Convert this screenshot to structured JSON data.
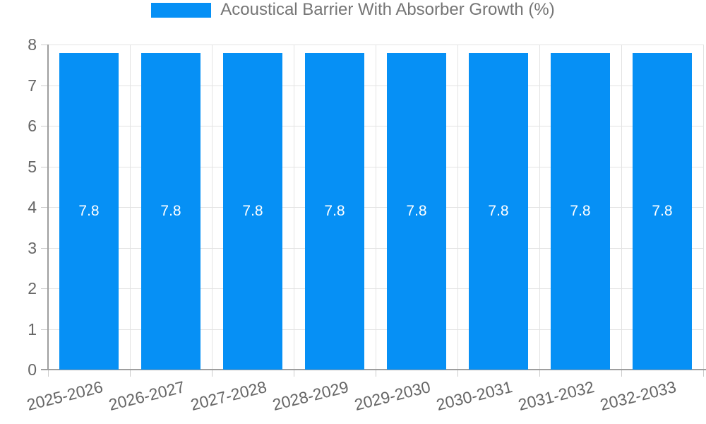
{
  "legend": {
    "label": "Acoustical Barrier With Absorber Growth (%)"
  },
  "chart_data": {
    "type": "bar",
    "title": "Acoustical Barrier With Absorber Growth (%)",
    "categories": [
      "2025-2026",
      "2026-2027",
      "2027-2028",
      "2028-2029",
      "2029-2030",
      "2030-2031",
      "2031-2032",
      "2032-2033"
    ],
    "values": [
      7.8,
      7.8,
      7.8,
      7.8,
      7.8,
      7.8,
      7.8,
      7.8
    ],
    "bar_value_labels": [
      "7.8",
      "7.8",
      "7.8",
      "7.8",
      "7.8",
      "7.8",
      "7.8",
      "7.8"
    ],
    "xlabel": "",
    "ylabel": "",
    "ylim": [
      0,
      8
    ],
    "yticks": [
      0,
      1,
      2,
      3,
      4,
      5,
      6,
      7,
      8
    ],
    "grid": true,
    "legend_position": "top-center",
    "colors": {
      "bar": "#0690f5",
      "value_label": "#ffffff",
      "axis": "#9e9e9e",
      "gridline": "#e3e3e3",
      "tick": "#cccccc",
      "tick_label": "#666666",
      "legend_text": "#757575",
      "background": "#ffffff"
    }
  }
}
